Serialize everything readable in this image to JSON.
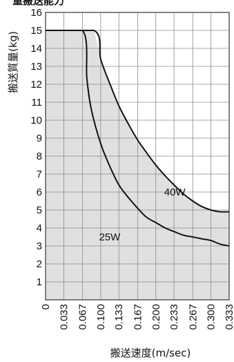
{
  "chart_data": {
    "type": "area",
    "title": "",
    "top_caption": "重搬送能力",
    "xlabel": "搬送速度(m/sec)",
    "ylabel": "搬送質量(kg)",
    "xlim": [
      0,
      0.333
    ],
    "ylim": [
      0,
      16
    ],
    "x_ticks": [
      "0",
      "0.033",
      "0.067",
      "0.100",
      "0.133",
      "0.167",
      "0.200",
      "0.233",
      "0.267",
      "0.300",
      "0.333"
    ],
    "y_ticks": [
      "16",
      "15",
      "14",
      "13",
      "12",
      "11",
      "10",
      "9",
      "8",
      "7",
      "6",
      "5",
      "4",
      "3",
      "2",
      "1"
    ],
    "grid": true,
    "fill_color": "#e0e0e0",
    "line_color": "#111111",
    "series": [
      {
        "name": "40W",
        "x": [
          0,
          0.088,
          0.1,
          0.117,
          0.133,
          0.15,
          0.167,
          0.183,
          0.2,
          0.217,
          0.233,
          0.25,
          0.267,
          0.283,
          0.3,
          0.317,
          0.333
        ],
        "y": [
          15,
          15,
          13.4,
          12.0,
          10.8,
          9.8,
          8.9,
          8.2,
          7.5,
          6.9,
          6.4,
          5.9,
          5.5,
          5.2,
          5.0,
          4.9,
          4.9
        ]
      },
      {
        "name": "25W",
        "x": [
          0,
          0.067,
          0.075,
          0.083,
          0.1,
          0.117,
          0.133,
          0.15,
          0.167,
          0.183,
          0.2,
          0.217,
          0.233,
          0.25,
          0.267,
          0.283,
          0.3,
          0.317,
          0.333
        ],
        "y": [
          15,
          15,
          12.3,
          10.6,
          8.7,
          7.4,
          6.4,
          5.7,
          5.1,
          4.6,
          4.3,
          4.0,
          3.8,
          3.6,
          3.5,
          3.4,
          3.3,
          3.1,
          3.0
        ]
      }
    ],
    "annotations": [
      {
        "text": "40W",
        "x": 0.215,
        "y": 6.0
      },
      {
        "text": "25W",
        "x": 0.097,
        "y": 3.5
      }
    ]
  }
}
